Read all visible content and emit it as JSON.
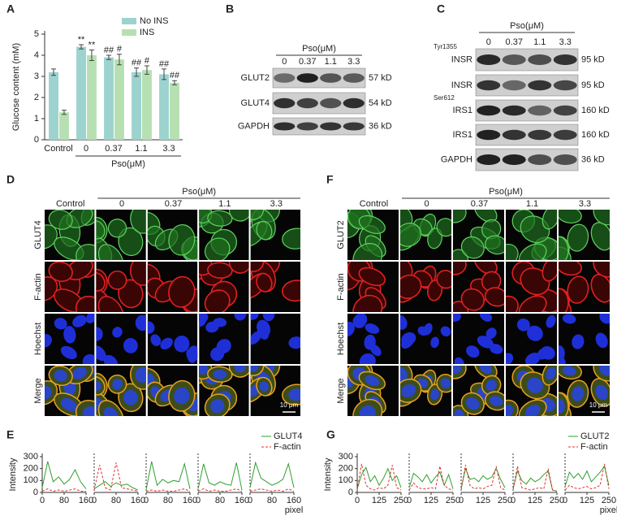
{
  "panel_labels": {
    "a": "A",
    "b": "B",
    "c": "C",
    "d": "D",
    "e": "E",
    "f": "F",
    "g": "G"
  },
  "chart_data": [
    {
      "type": "bar",
      "ylabel": "Glucose content (mM)",
      "categories": [
        "Control",
        "0",
        "0.37",
        "1.1",
        "3.3"
      ],
      "group_label": "Pso(μM)",
      "series": [
        {
          "name": "No INS",
          "color": "#9dd3cf",
          "values": [
            3.2,
            4.4,
            3.9,
            3.2,
            3.1
          ],
          "errors": [
            0.15,
            0.1,
            0.1,
            0.2,
            0.25
          ],
          "annotations": [
            null,
            "**",
            "##",
            "##",
            "##"
          ]
        },
        {
          "name": "INS",
          "color": "#b7e0b2",
          "values": [
            1.3,
            4.0,
            3.8,
            3.3,
            2.7
          ],
          "errors": [
            0.1,
            0.25,
            0.25,
            0.2,
            0.1
          ],
          "annotations": [
            null,
            "**",
            "#",
            "#",
            "##"
          ]
        }
      ],
      "ylim": [
        0,
        5
      ],
      "yticks": [
        0,
        1,
        2,
        3,
        4,
        5
      ]
    },
    {
      "type": "line",
      "ylabel": "Intensity",
      "xlabel": "pixel",
      "x": [
        0,
        20,
        40,
        60,
        80,
        100,
        120,
        140,
        160
      ],
      "xlim": [
        0,
        160
      ],
      "xticks": [
        0,
        80,
        160
      ],
      "ylim": [
        0,
        300
      ],
      "yticks": [
        0,
        100,
        200,
        300
      ],
      "series": [
        {
          "name": "GLUT4",
          "color": "#2ea02e",
          "dash": false,
          "values": [
            [
              40,
              260,
              90,
              130,
              70,
              110,
              190,
              90,
              30
            ],
            [
              30,
              60,
              90,
              50,
              80,
              60,
              70,
              40,
              20
            ],
            [
              20,
              260,
              60,
              110,
              80,
              100,
              90,
              240,
              30
            ],
            [
              30,
              240,
              80,
              60,
              90,
              70,
              60,
              250,
              20
            ],
            [
              40,
              250,
              120,
              90,
              60,
              80,
              110,
              240,
              40
            ]
          ]
        },
        {
          "name": "F-actin",
          "color": "#e03030",
          "dash": true,
          "values": [
            [
              10,
              30,
              10,
              20,
              10,
              20,
              30,
              10,
              10
            ],
            [
              20,
              230,
              40,
              20,
              250,
              40,
              30,
              20,
              10
            ],
            [
              10,
              20,
              10,
              20,
              10,
              10,
              20,
              30,
              10
            ],
            [
              10,
              30,
              10,
              20,
              10,
              10,
              20,
              30,
              10
            ],
            [
              10,
              20,
              30,
              20,
              10,
              20,
              10,
              30,
              10
            ]
          ]
        }
      ]
    },
    {
      "type": "line",
      "ylabel": "Intensity",
      "xlabel": "pixel",
      "x": [
        0,
        25,
        50,
        75,
        100,
        125,
        150,
        175,
        200,
        225,
        250
      ],
      "xlim": [
        0,
        250
      ],
      "xticks": [
        0,
        125,
        250
      ],
      "ylim": [
        0,
        300
      ],
      "yticks": [
        0,
        100,
        200,
        300
      ],
      "series": [
        {
          "name": "GLUT2",
          "color": "#2ea02e",
          "dash": false,
          "values": [
            [
              30,
              150,
              210,
              90,
              140,
              60,
              120,
              200,
              100,
              140,
              40
            ],
            [
              40,
              160,
              130,
              90,
              150,
              80,
              130,
              170,
              60,
              150,
              30
            ],
            [
              30,
              200,
              110,
              120,
              90,
              140,
              110,
              130,
              200,
              110,
              40
            ],
            [
              30,
              180,
              100,
              70,
              120,
              90,
              110,
              150,
              180,
              20,
              10
            ],
            [
              50,
              170,
              120,
              160,
              110,
              180,
              90,
              130,
              170,
              220,
              60
            ]
          ]
        },
        {
          "name": "F-actin",
          "color": "#e03030",
          "dash": true,
          "values": [
            [
              20,
              240,
              60,
              30,
              20,
              40,
              30,
              60,
              230,
              40,
              20
            ],
            [
              20,
              80,
              40,
              30,
              30,
              40,
              30,
              220,
              60,
              30,
              20
            ],
            [
              20,
              230,
              60,
              30,
              40,
              30,
              50,
              60,
              220,
              40,
              20
            ],
            [
              20,
              220,
              40,
              30,
              20,
              30,
              40,
              30,
              200,
              20,
              10
            ],
            [
              20,
              60,
              40,
              30,
              40,
              50,
              30,
              40,
              60,
              240,
              30
            ]
          ]
        }
      ]
    }
  ],
  "blot_b": {
    "header": "Pso(μM)",
    "doses": [
      "0",
      "0.37",
      "1.1",
      "3.3"
    ],
    "rows": [
      {
        "label": "GLUT2",
        "size": "57 kD"
      },
      {
        "label": "GLUT4",
        "size": "54 kD"
      },
      {
        "label": "GAPDH",
        "size": "36 kD"
      }
    ]
  },
  "blot_c": {
    "header": "Pso(μM)",
    "doses": [
      "0",
      "0.37",
      "1.1",
      "3.3"
    ],
    "rows": [
      {
        "site": "Tyr1355",
        "label": "INSR",
        "size": "95 kD"
      },
      {
        "label": "INSR",
        "size": "95 kD"
      },
      {
        "site": "Ser612",
        "label": "IRS1",
        "size": "160 kD"
      },
      {
        "label": "IRS1",
        "size": "160 kD"
      },
      {
        "label": "GAPDH",
        "size": "36 kD"
      }
    ]
  },
  "microscopy_d": {
    "header": "Pso(μM)",
    "columns": [
      "Control",
      "0",
      "0.37",
      "1.1",
      "3.3"
    ],
    "rows": [
      "GLUT4",
      "F-actin",
      "Hoechst",
      "Merge"
    ],
    "scale_bar": "10 μm"
  },
  "microscopy_f": {
    "header": "Pso(μM)",
    "columns": [
      "Control",
      "0",
      "0.37",
      "1.1",
      "3.3"
    ],
    "rows": [
      "GLUT2",
      "F-actin",
      "Hoechst",
      "Merge"
    ],
    "scale_bar": "10 μm"
  }
}
